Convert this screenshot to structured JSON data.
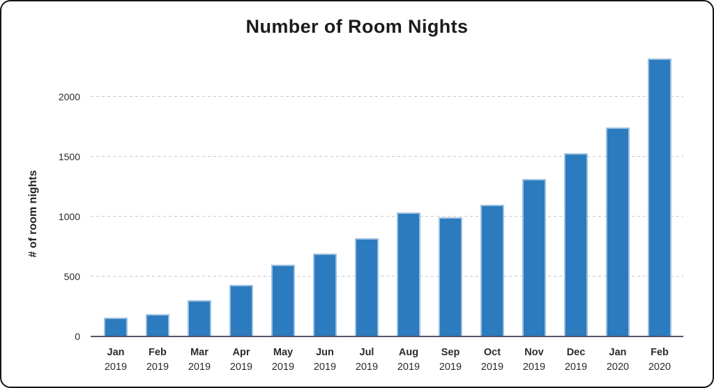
{
  "title": "Number of Room Nights",
  "chart_data": {
    "type": "bar",
    "title": "Number of Room Nights",
    "xlabel": "",
    "ylabel": "# of room nights",
    "categories": [
      "Jan 2019",
      "Feb 2019",
      "Mar 2019",
      "Apr 2019",
      "May 2019",
      "Jun 2019",
      "Jul 2019",
      "Aug 2019",
      "Sep 2019",
      "Oct 2019",
      "Nov 2019",
      "Dec 2019",
      "Jan 2020",
      "Feb 2020"
    ],
    "categories_two_line": [
      {
        "month": "Jan",
        "year": "2019"
      },
      {
        "month": "Feb",
        "year": "2019"
      },
      {
        "month": "Mar",
        "year": "2019"
      },
      {
        "month": "Apr",
        "year": "2019"
      },
      {
        "month": "May",
        "year": "2019"
      },
      {
        "month": "Jun",
        "year": "2019"
      },
      {
        "month": "Jul",
        "year": "2019"
      },
      {
        "month": "Aug",
        "year": "2019"
      },
      {
        "month": "Sep",
        "year": "2019"
      },
      {
        "month": "Oct",
        "year": "2019"
      },
      {
        "month": "Nov",
        "year": "2019"
      },
      {
        "month": "Dec",
        "year": "2019"
      },
      {
        "month": "Jan",
        "year": "2020"
      },
      {
        "month": "Feb",
        "year": "2020"
      }
    ],
    "values": [
      155,
      185,
      300,
      430,
      600,
      690,
      820,
      1035,
      995,
      1100,
      1315,
      1525,
      1740,
      2320
    ],
    "yticks": [
      0,
      500,
      1000,
      1500,
      2000
    ],
    "ylim": [
      0,
      2370
    ],
    "grid": "horizontal dashed lines at yticks",
    "legend_position": "none",
    "colors": {
      "bar_fill": "#2b7bbe",
      "bar_edge": "#b1cde8",
      "gridline": "#c7c7c7",
      "axis_line": "#54546a",
      "text": "#2b2b2b",
      "title_text": "#1c1c1c",
      "card_border": "#141414",
      "background": "#ffffff"
    }
  }
}
